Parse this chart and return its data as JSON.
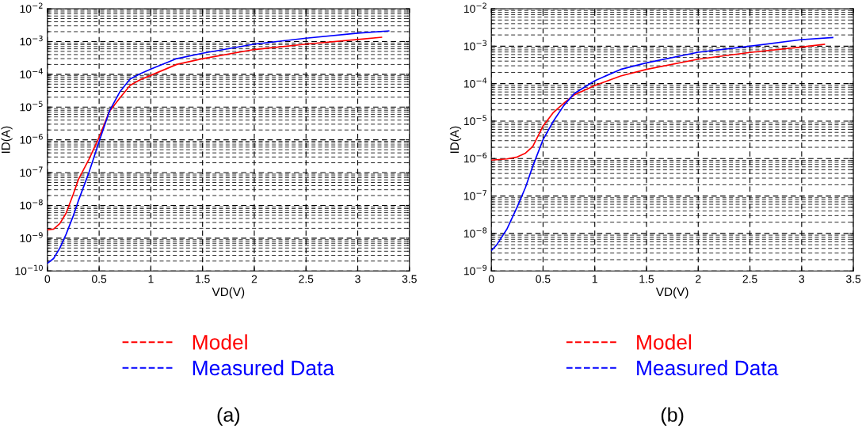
{
  "chart_data": [
    {
      "type": "line",
      "xlabel": "VD(V)",
      "ylabel": "ID(A)",
      "log": "y",
      "grid": true,
      "legend": "bottom",
      "line_style": "solid",
      "marker": "none",
      "xlim": [
        0,
        3.5
      ],
      "xticks": [
        0,
        0.5,
        1,
        1.5,
        2,
        2.5,
        3,
        3.5
      ],
      "ylim": [
        1e-10,
        0.01
      ],
      "yticks": [
        {
          "value": 1e-10,
          "label": "10$^{−10}$"
        },
        {
          "value": 1e-09,
          "label": "10$^{−9}$"
        },
        {
          "value": 1e-08,
          "label": "10$^{−8}$"
        },
        {
          "value": 1e-07,
          "label": "10$^{−7}$"
        },
        {
          "value": 1e-06,
          "label": "10$^{−6}$"
        },
        {
          "value": 1e-05,
          "label": "10$^{−5}$"
        },
        {
          "value": 0.0001,
          "label": "10$^{−4}$"
        },
        {
          "value": 0.001,
          "label": "10$^{−3}$"
        },
        {
          "value": 0.01,
          "label": "10$^{−2}$"
        }
      ],
      "series": [
        {
          "name": "Model",
          "color": "#ff0000",
          "x": [
            0,
            0.06,
            0.12,
            0.18,
            0.25,
            0.3,
            0.4,
            0.5,
            0.6,
            0.7,
            0.8,
            0.9,
            1.0,
            1.25,
            1.5,
            2.0,
            2.5,
            3.0,
            3.23
          ],
          "values": [
            1.8e-09,
            1.9e-09,
            2.8e-09,
            5.7e-09,
            2.2e-08,
            6.2e-08,
            2.5e-07,
            1.2e-06,
            7.4e-06,
            1.9e-05,
            4.6e-05,
            6.9e-05,
            9.3e-05,
            0.0002,
            0.0003,
            0.00057,
            0.00083,
            0.00115,
            0.00135
          ]
        },
        {
          "name": "Measured Data",
          "color": "#0000ff",
          "x": [
            0,
            0.06,
            0.12,
            0.18,
            0.25,
            0.3,
            0.4,
            0.5,
            0.6,
            0.7,
            0.8,
            0.9,
            1.0,
            1.25,
            1.5,
            2.0,
            2.5,
            3.0,
            3.3
          ],
          "values": [
            1.7e-10,
            2.4e-10,
            5e-10,
            1.3e-09,
            4.8e-09,
            1.4e-08,
            9.8e-08,
            8.9e-07,
            7.6e-06,
            2.9e-05,
            7.2e-05,
            0.000105,
            0.000145,
            0.0003,
            0.00044,
            0.00083,
            0.00126,
            0.0018,
            0.0021
          ]
        }
      ],
      "annotations": [
        "(a)"
      ]
    },
    {
      "type": "line",
      "xlabel": "VD(V)",
      "ylabel": "ID(A)",
      "log": "y",
      "grid": true,
      "legend": "bottom",
      "line_style": "solid",
      "marker": "none",
      "xlim": [
        0,
        3.5
      ],
      "xticks": [
        0,
        0.5,
        1,
        1.5,
        2,
        2.5,
        3,
        3.5
      ],
      "ylim": [
        1e-09,
        0.01
      ],
      "yticks": [
        {
          "value": 1e-09,
          "label": "10$^{−9}$"
        },
        {
          "value": 1e-08,
          "label": "10$^{−8}$"
        },
        {
          "value": 1e-07,
          "label": "10$^{−7}$"
        },
        {
          "value": 1e-06,
          "label": "10$^{−6}$"
        },
        {
          "value": 1e-05,
          "label": "10$^{−5}$"
        },
        {
          "value": 0.0001,
          "label": "10$^{−4}$"
        },
        {
          "value": 0.001,
          "label": "10$^{−3}$"
        },
        {
          "value": 0.01,
          "label": "10$^{−2}$"
        }
      ],
      "series": [
        {
          "name": "Model",
          "color": "#ff0000",
          "x": [
            0,
            0.15,
            0.25,
            0.33,
            0.4,
            0.5,
            0.6,
            0.7,
            0.8,
            1.0,
            1.25,
            1.5,
            2.0,
            2.5,
            3.0,
            3.22
          ],
          "values": [
            9.1e-07,
            9.8e-07,
            1.1e-06,
            1.4e-06,
            2.1e-06,
            7.4e-06,
            1.7e-05,
            3e-05,
            5e-05,
            8.9e-05,
            0.00016,
            0.00024,
            0.00045,
            0.00068,
            0.00095,
            0.00112
          ]
        },
        {
          "name": "Measured Data",
          "color": "#0000ff",
          "x": [
            0,
            0.05,
            0.15,
            0.25,
            0.33,
            0.4,
            0.5,
            0.6,
            0.7,
            0.8,
            1.0,
            1.25,
            1.5,
            2.0,
            2.5,
            3.0,
            3.3
          ],
          "values": [
            3.5e-09,
            4.9e-09,
            1.3e-08,
            5.1e-08,
            1.7e-07,
            6.2e-07,
            3.2e-06,
            1e-05,
            2.6e-05,
            5.4e-05,
            0.00012,
            0.00024,
            0.00036,
            0.00069,
            0.001,
            0.0015,
            0.0017
          ]
        }
      ],
      "annotations": [
        "(b)"
      ]
    }
  ]
}
